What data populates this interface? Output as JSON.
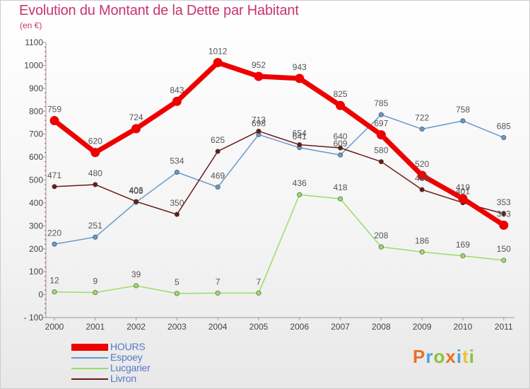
{
  "title": "Evolution du Montant de la Dette par Habitant",
  "subtitle": "(en €)",
  "logo": {
    "text": "Proxiti",
    "colors": [
      "#e8722a",
      "#4aa3d8",
      "#88c23c",
      "#e8722a",
      "#4aa3d8",
      "#e8c33a",
      "#88c23c"
    ]
  },
  "chart_data": {
    "type": "line",
    "x": [
      "2000",
      "2001",
      "2002",
      "2003",
      "2004",
      "2005",
      "2006",
      "2007",
      "2008",
      "2009",
      "2010",
      "2011"
    ],
    "y_ticks": [
      "1100",
      "1000",
      "900",
      "800",
      "700",
      "600",
      "500",
      "400",
      "300",
      "200",
      "100",
      "0",
      "- 100"
    ],
    "ylim": [
      -100,
      1100
    ],
    "grid": false,
    "legend_position": "bottom-left",
    "series": [
      {
        "name": "HOURS",
        "color": "#ee0000",
        "values": [
          759,
          620,
          724,
          843,
          1012,
          952,
          943,
          825,
          697,
          520,
          419,
          303
        ]
      },
      {
        "name": "Espoey",
        "color": "#6699cc",
        "values": [
          220,
          251,
          403,
          534,
          469,
          698,
          641,
          609,
          785,
          722,
          758,
          685
        ]
      },
      {
        "name": "Lucgarier",
        "color": "#99dd66",
        "values": [
          12,
          9,
          39,
          5,
          7,
          7,
          436,
          418,
          208,
          186,
          169,
          150
        ]
      },
      {
        "name": "Livron",
        "color": "#6b1a1a",
        "values": [
          471,
          480,
          406,
          350,
          625,
          713,
          654,
          640,
          580,
          458,
          401,
          353
        ]
      }
    ]
  }
}
